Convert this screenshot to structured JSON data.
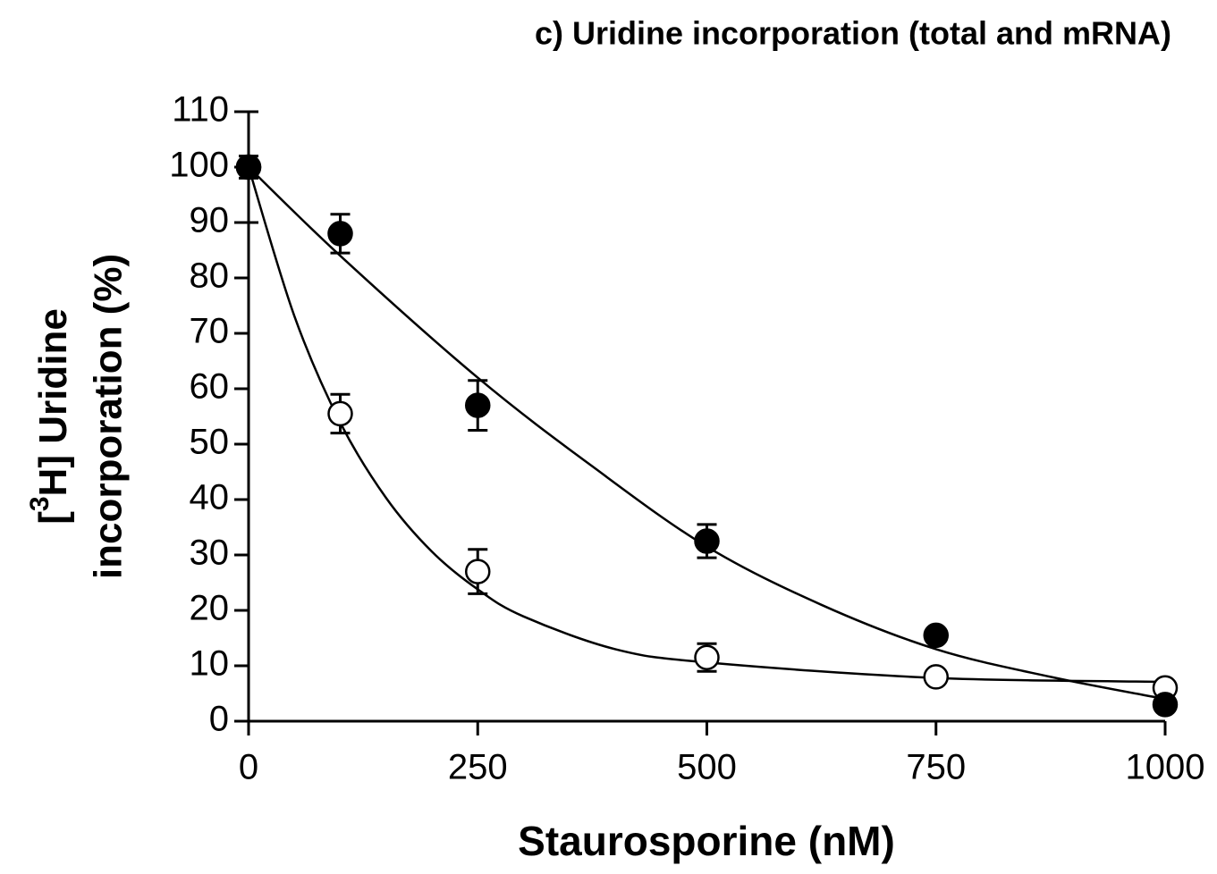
{
  "chart_data": {
    "type": "scatter",
    "title": "c) Uridine incorporation (total and mRNA)",
    "xlabel": "Staurosporine (nM)",
    "ylabel": {
      "line1": [
        "[",
        "3",
        "H] Uridine"
      ],
      "line2": "incorporation (%)"
    },
    "xlim": [
      0,
      1000
    ],
    "xticks": [
      0,
      250,
      500,
      750,
      1000
    ],
    "ylim": [
      0,
      110
    ],
    "yticks": [
      0,
      10,
      20,
      30,
      40,
      50,
      60,
      70,
      80,
      90,
      100,
      110
    ],
    "series": [
      {
        "marker": "open",
        "color": "#000000",
        "x": [
          0,
          100,
          250,
          500,
          750,
          1000
        ],
        "values": [
          100,
          55.5,
          27,
          11.5,
          8,
          6
        ],
        "errors": [
          10,
          3.5,
          4,
          2.5,
          0,
          0
        ],
        "fit": {
          "x": [
            0,
            50,
            100,
            150,
            200,
            250,
            300,
            400,
            500,
            750,
            1000
          ],
          "values": [
            100,
            73.1,
            53.9,
            40.3,
            30.6,
            23.8,
            18.9,
            13,
            10.6,
            7.8,
            7.1
          ]
        }
      },
      {
        "marker": "filled",
        "color": "#000000",
        "x": [
          0,
          100,
          250,
          500,
          750,
          1000
        ],
        "values": [
          100,
          88,
          57,
          32.5,
          15.5,
          3
        ],
        "errors": [
          2,
          3.5,
          4.5,
          3,
          0,
          0
        ],
        "fit": {
          "x": [
            0,
            100,
            250,
            375,
            500,
            625,
            750,
            875,
            1000
          ],
          "values": [
            100,
            84,
            62,
            46,
            31.5,
            21,
            13,
            8,
            4
          ]
        }
      }
    ]
  }
}
